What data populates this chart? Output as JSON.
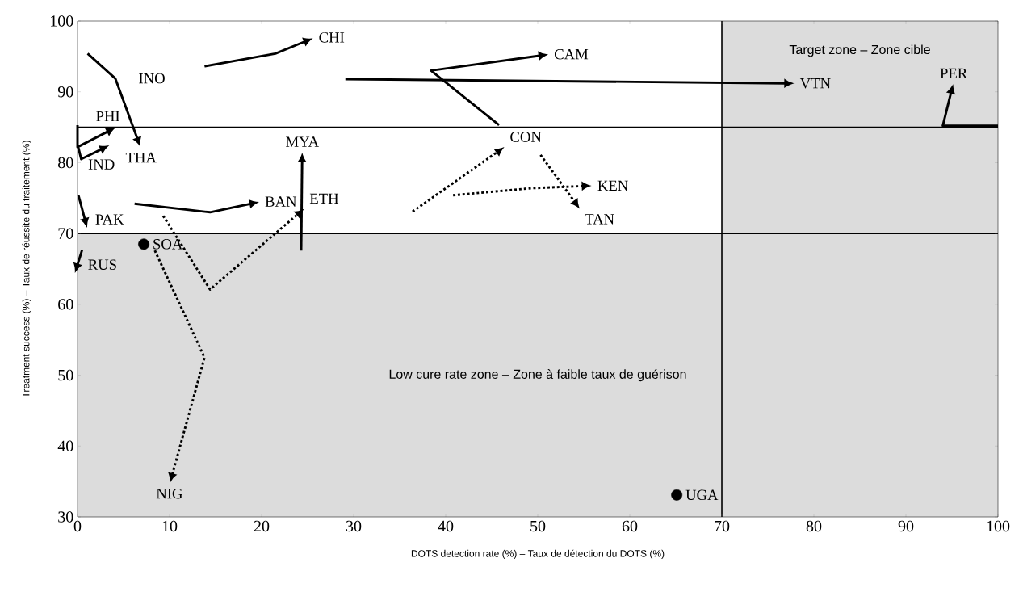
{
  "chart_data": {
    "type": "line",
    "xlabel": "DOTS detection rate (%) – Taux de détection du DOTS (%)",
    "ylabel": "Treatment success (%) – Taux de réussite du traitement (%)",
    "xlim": [
      0,
      100
    ],
    "ylim": [
      30,
      100
    ],
    "xticks": [
      0,
      10,
      20,
      30,
      40,
      50,
      60,
      70,
      80,
      90,
      100
    ],
    "yticks": [
      30,
      40,
      50,
      60,
      70,
      80,
      90,
      100
    ],
    "grid": false,
    "marker": "none",
    "series": [
      {
        "name": "CHI",
        "color": "#000000",
        "line_style": "solid",
        "x": [
          13.8,
          21.5,
          24.7
        ],
        "values": [
          93.6,
          95.4,
          97.1
        ]
      },
      {
        "name": "THA",
        "color": "#000000",
        "line_style": "solid",
        "x": [
          1.1,
          4.1,
          6.5
        ],
        "values": [
          95.4,
          91.9,
          83.4
        ]
      },
      {
        "name": "PHI",
        "color": "#000000",
        "line_style": "solid",
        "x": [
          0,
          0,
          3.3
        ],
        "values": [
          85.3,
          82.2,
          84.4
        ]
      },
      {
        "name": "IND",
        "color": "#000000",
        "line_style": "solid",
        "x": [
          0.1,
          0.4,
          2.6
        ],
        "values": [
          82.1,
          80.5,
          81.9
        ]
      },
      {
        "name": "BAN",
        "color": "#000000",
        "line_style": "solid",
        "x": [
          6.2,
          14.4,
          18.8
        ],
        "values": [
          74.2,
          73.0,
          74.2
        ]
      },
      {
        "name": "MYA",
        "color": "#000000",
        "line_style": "solid",
        "x": [
          24.3,
          24.4
        ],
        "values": [
          67.6,
          80.2
        ]
      },
      {
        "name": "ETH",
        "color": "#000000",
        "line_style": "dotted",
        "x": [
          9.3,
          14.4,
          23.9
        ],
        "values": [
          72.5,
          62.1,
          72.7
        ]
      },
      {
        "name": "NIG",
        "color": "#000000",
        "line_style": "dotted",
        "x": [
          8.4,
          13.8,
          10.3
        ],
        "values": [
          67.6,
          52.5,
          36.0
        ]
      },
      {
        "name": "PAK",
        "color": "#000000",
        "line_style": "solid",
        "x": [
          0.1,
          0.8
        ],
        "values": [
          75.4,
          72.0
        ]
      },
      {
        "name": "RUS",
        "color": "#000000",
        "line_style": "solid",
        "x": [
          0.5,
          0
        ],
        "values": [
          67.7,
          65.6
        ]
      },
      {
        "name": "CAM",
        "color": "#000000",
        "line_style": "solid",
        "x": [
          45.8,
          38.4,
          50.2
        ],
        "values": [
          85.3,
          93.0,
          95.1
        ]
      },
      {
        "name": "VTN",
        "color": "#000000",
        "line_style": "solid",
        "x": [
          29.1,
          76.9
        ],
        "values": [
          91.8,
          91.2
        ]
      },
      {
        "name": "CON",
        "color": "#000000",
        "line_style": "dotted",
        "x": [
          36.4,
          45.6
        ],
        "values": [
          73.1,
          81.5
        ]
      },
      {
        "name": "KEN",
        "color": "#000000",
        "line_style": "dotted",
        "x": [
          40.8,
          49.3,
          54.9
        ],
        "values": [
          75.4,
          76.4,
          76.7
        ]
      },
      {
        "name": "TAN",
        "color": "#000000",
        "line_style": "dotted",
        "x": [
          50.3,
          54.0
        ],
        "values": [
          81.1,
          74.5
        ]
      },
      {
        "name": "PER",
        "color": "#000000",
        "line_style": "solid",
        "x": [
          100,
          94.0,
          94.9
        ],
        "values": [
          85.2,
          85.2,
          89.9
        ]
      },
      {
        "name": "SOA",
        "type": "scatter",
        "marker": "circle",
        "color": "#000000",
        "x": [
          7.2
        ],
        "values": [
          68.5
        ]
      },
      {
        "name": "UGA",
        "type": "scatter",
        "marker": "circle",
        "color": "#000000",
        "x": [
          65.1
        ],
        "values": [
          33.1
        ]
      }
    ],
    "ref_lines": [
      {
        "axis": "y",
        "value": 85,
        "color": "#000000"
      },
      {
        "axis": "y",
        "value": 70,
        "color": "#000000"
      },
      {
        "axis": "x",
        "value": 70,
        "color": "#000000"
      }
    ],
    "bands": [
      {
        "axis": "y",
        "from": 30,
        "to": 70,
        "color": "#dcdcdc",
        "label": "Low cure rate zone – Zone à faible taux de guérison"
      },
      {
        "axis": "x",
        "from": 70,
        "to": 100,
        "color": "#dcdcdc",
        "label": "Target zone – Zone cible"
      }
    ],
    "annotations": [
      {
        "text": "INO",
        "x": 4.1,
        "y": 91.9
      }
    ]
  }
}
